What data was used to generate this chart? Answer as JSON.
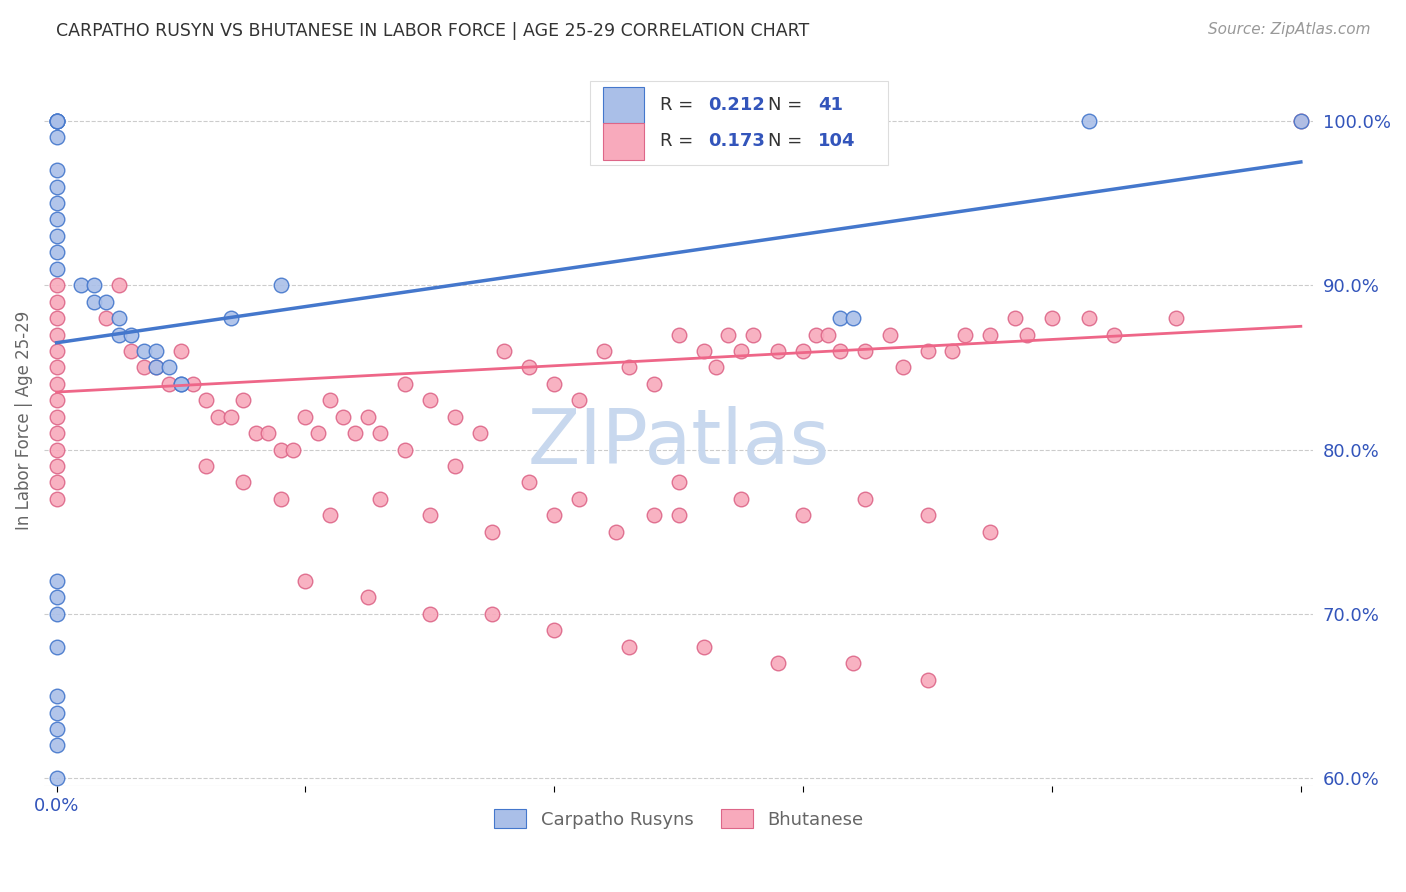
{
  "title": "CARPATHO RUSYN VS BHUTANESE IN LABOR FORCE | AGE 25-29 CORRELATION CHART",
  "source": "Source: ZipAtlas.com",
  "ylabel": "In Labor Force | Age 25-29",
  "watermark": "ZIPatlas",
  "legend_blue_R": "0.212",
  "legend_blue_N": "41",
  "legend_pink_R": "0.173",
  "legend_pink_N": "104",
  "blue_fill": "#AABFE8",
  "blue_edge": "#4477CC",
  "pink_fill": "#F8AABC",
  "pink_edge": "#DD6688",
  "blue_line": "#4477CC",
  "pink_line": "#EE6688",
  "tick_color": "#3355BB",
  "grid_color": "#CCCCCC",
  "watermark_color": "#C8D8EE",
  "title_color": "#333333",
  "source_color": "#999999",
  "ylabel_color": "#666666",
  "legend_text_color": "#333333",
  "legend_val_color": "#3355BB",
  "bottom_legend_color": "#666666",
  "xlim": [
    -0.01,
    1.01
  ],
  "ylim": [
    0.595,
    1.04
  ],
  "ytick_vals": [
    0.6,
    0.7,
    0.8,
    0.9,
    1.0
  ],
  "ytick_labels": [
    "60.0%",
    "70.0%",
    "80.0%",
    "90.0%",
    "100.0%"
  ],
  "xtick_vals": [
    0.0,
    0.2,
    0.4,
    0.6,
    0.8,
    1.0
  ],
  "xtick_label": "0.0%",
  "blue_x": [
    0.0,
    0.0,
    0.0,
    0.0,
    0.0,
    0.0,
    0.0,
    0.0,
    0.0,
    0.0,
    0.0,
    0.0,
    0.02,
    0.03,
    0.03,
    0.04,
    0.05,
    0.05,
    0.06,
    0.07,
    0.08,
    0.08,
    0.09,
    0.1,
    0.1,
    0.14,
    0.18,
    0.62,
    0.63,
    0.64,
    0.83,
    1.0,
    0.0,
    0.0,
    0.0,
    0.0,
    0.0,
    0.0,
    0.0,
    0.0,
    0.0
  ],
  "blue_y": [
    1.0,
    1.0,
    1.0,
    1.0,
    0.99,
    0.97,
    0.96,
    0.95,
    0.94,
    0.93,
    0.92,
    0.91,
    0.9,
    0.9,
    0.89,
    0.89,
    0.88,
    0.87,
    0.87,
    0.86,
    0.86,
    0.85,
    0.85,
    0.84,
    0.84,
    0.88,
    0.9,
    1.0,
    0.88,
    0.88,
    1.0,
    1.0,
    0.72,
    0.71,
    0.7,
    0.68,
    0.65,
    0.64,
    0.63,
    0.62,
    0.6
  ],
  "pink_x": [
    0.0,
    0.0,
    0.0,
    0.0,
    0.0,
    0.0,
    0.0,
    0.0,
    0.0,
    0.0,
    0.0,
    0.0,
    0.0,
    0.0,
    0.04,
    0.05,
    0.06,
    0.07,
    0.08,
    0.09,
    0.1,
    0.11,
    0.12,
    0.13,
    0.14,
    0.15,
    0.16,
    0.17,
    0.18,
    0.19,
    0.2,
    0.21,
    0.22,
    0.23,
    0.24,
    0.25,
    0.26,
    0.28,
    0.3,
    0.32,
    0.34,
    0.36,
    0.38,
    0.4,
    0.42,
    0.44,
    0.46,
    0.48,
    0.5,
    0.5,
    0.52,
    0.53,
    0.54,
    0.55,
    0.56,
    0.58,
    0.6,
    0.61,
    0.62,
    0.63,
    0.65,
    0.67,
    0.68,
    0.7,
    0.72,
    0.73,
    0.75,
    0.77,
    0.78,
    0.8,
    0.83,
    0.85,
    0.9,
    0.12,
    0.15,
    0.18,
    0.22,
    0.26,
    0.3,
    0.35,
    0.4,
    0.45,
    0.5,
    0.28,
    0.32,
    0.38,
    0.42,
    0.48,
    0.55,
    0.6,
    0.65,
    0.7,
    0.75,
    0.2,
    0.25,
    0.3,
    0.35,
    0.4,
    0.46,
    0.52,
    0.58,
    0.64,
    0.7,
    1.0
  ],
  "pink_y": [
    0.9,
    0.89,
    0.88,
    0.87,
    0.86,
    0.85,
    0.84,
    0.83,
    0.82,
    0.81,
    0.8,
    0.79,
    0.78,
    0.77,
    0.88,
    0.9,
    0.86,
    0.85,
    0.85,
    0.84,
    0.86,
    0.84,
    0.83,
    0.82,
    0.82,
    0.83,
    0.81,
    0.81,
    0.8,
    0.8,
    0.82,
    0.81,
    0.83,
    0.82,
    0.81,
    0.82,
    0.81,
    0.84,
    0.83,
    0.82,
    0.81,
    0.86,
    0.85,
    0.84,
    0.83,
    0.86,
    0.85,
    0.84,
    0.87,
    0.78,
    0.86,
    0.85,
    0.87,
    0.86,
    0.87,
    0.86,
    0.86,
    0.87,
    0.87,
    0.86,
    0.86,
    0.87,
    0.85,
    0.86,
    0.86,
    0.87,
    0.87,
    0.88,
    0.87,
    0.88,
    0.88,
    0.87,
    0.88,
    0.79,
    0.78,
    0.77,
    0.76,
    0.77,
    0.76,
    0.75,
    0.76,
    0.75,
    0.76,
    0.8,
    0.79,
    0.78,
    0.77,
    0.76,
    0.77,
    0.76,
    0.77,
    0.76,
    0.75,
    0.72,
    0.71,
    0.7,
    0.7,
    0.69,
    0.68,
    0.68,
    0.67,
    0.67,
    0.66,
    1.0
  ]
}
